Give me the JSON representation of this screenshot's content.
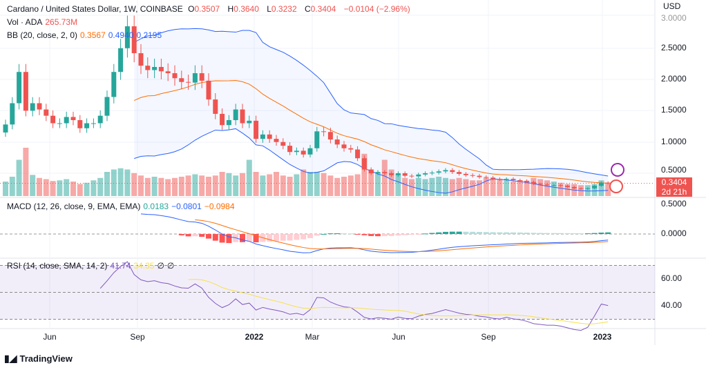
{
  "legend": {
    "title": "Cardano / United States Dollar, 1W, COINBASE",
    "o_label": "O",
    "o": "0.3507",
    "h_label": "H",
    "h": "0.3640",
    "l_label": "L",
    "l": "0.3232",
    "c_label": "C",
    "c": "0.3404",
    "change": "−0.0104 (−2.96%)",
    "vol_label": "Vol · ADA",
    "vol": "265.73M",
    "bb_label": "BB (20, close, 2, 0)",
    "bb_basis": "0.3567",
    "bb_upper": "0.4940",
    "bb_lower": "0.2195",
    "macd_label": "MACD (12, 26, close, 9, EMA, EMA)",
    "macd_hist": "0.0183",
    "macd": "−0.0801",
    "macd_signal": "−0.0984",
    "rsi_label": "RSI (14, close, SMA, 14, 2)",
    "rsi": "41.74",
    "rsi_ma": "34.35",
    "rsi_x1": "∅",
    "rsi_x2": "∅"
  },
  "currency": "USD",
  "price_tag": {
    "price": "0.3404",
    "countdown": "2d 21h"
  },
  "price_scale": [
    "3.0000",
    "2.5000",
    "2.0000",
    "1.5000",
    "1.0000",
    "0.5000"
  ],
  "macd_scale": [
    "0.5000",
    "0.0000"
  ],
  "rsi_scale": [
    "60.00",
    "40.00"
  ],
  "time_labels": [
    "Jun",
    "Sep",
    "2022",
    "Mar",
    "Jun",
    "Sep",
    "2023"
  ],
  "brand": "TradingView",
  "colors": {
    "up": "#26a69a",
    "down": "#ef5350",
    "bb_band": "#2962ff",
    "bb_basis": "#ff6d00",
    "rsi": "#7e57c2",
    "rsi_ma": "#f5e14b"
  },
  "chart_data": {
    "type": "candlestick",
    "title": "Cardano / United States Dollar, 1W, COINBASE",
    "ylim": [
      0,
      3
    ],
    "closes": [
      1.28,
      1.62,
      2.12,
      1.5,
      1.62,
      1.52,
      1.42,
      1.3,
      1.3,
      1.4,
      1.35,
      1.22,
      1.3,
      1.3,
      1.42,
      1.72,
      2.12,
      2.5,
      2.85,
      2.42,
      2.22,
      2.15,
      2.2,
      2.13,
      2.1,
      2.02,
      1.96,
      1.95,
      2.1,
      1.98,
      1.68,
      1.45,
      1.27,
      1.35,
      1.52,
      1.3,
      1.34,
      1.05,
      1.12,
      1.05,
      1.0,
      0.94,
      0.84,
      0.86,
      0.8,
      0.9,
      1.17,
      1.16,
      1.04,
      0.96,
      0.9,
      0.88,
      0.74,
      0.56,
      0.5,
      0.52,
      0.5,
      0.47,
      0.5,
      0.46,
      0.45,
      0.48,
      0.5,
      0.51,
      0.53,
      0.55,
      0.52,
      0.49,
      0.47,
      0.46,
      0.44,
      0.43,
      0.41,
      0.4,
      0.41,
      0.39,
      0.38,
      0.36,
      0.33,
      0.32,
      0.31,
      0.31,
      0.3,
      0.28,
      0.26,
      0.25,
      0.26,
      0.3,
      0.35,
      0.34
    ],
    "volumes": [
      24,
      32,
      60,
      80,
      35,
      30,
      28,
      25,
      26,
      28,
      24,
      20,
      22,
      26,
      30,
      40,
      44,
      46,
      44,
      38,
      34,
      30,
      32,
      30,
      28,
      30,
      32,
      34,
      36,
      34,
      32,
      34,
      40,
      38,
      34,
      38,
      60,
      40,
      34,
      36,
      40,
      34,
      32,
      36,
      44,
      40,
      40,
      38,
      34,
      30,
      32,
      34,
      36,
      70,
      44,
      38,
      60,
      44,
      36,
      30,
      28,
      30,
      28,
      30,
      32,
      30,
      28,
      30,
      28,
      26,
      26,
      30,
      28,
      28,
      26,
      24,
      26,
      24,
      30,
      28,
      26,
      24,
      22,
      20,
      20,
      18,
      18,
      20,
      26,
      22
    ]
  }
}
